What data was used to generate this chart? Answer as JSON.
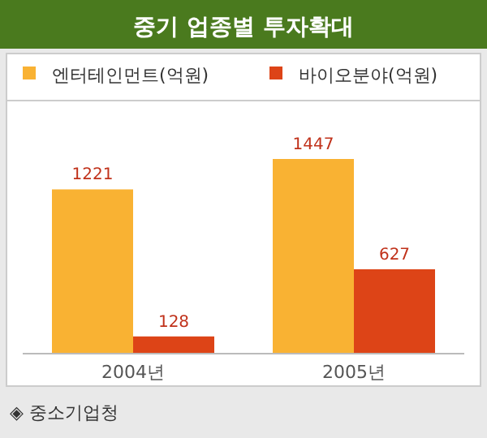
{
  "chart_data": {
    "type": "bar",
    "title": "중기 업종별 투자확대",
    "categories": [
      "2004년",
      "2005년"
    ],
    "series": [
      {
        "name": "엔터테인먼트(억원)",
        "color": "#f9b233",
        "values": [
          1221,
          1447
        ]
      },
      {
        "name": "바이오분야(억원)",
        "color": "#dd4417",
        "values": [
          128,
          627
        ]
      }
    ],
    "data_labels": true,
    "legend": "top",
    "annotations": [
      "◈ 중소기업청"
    ]
  }
}
